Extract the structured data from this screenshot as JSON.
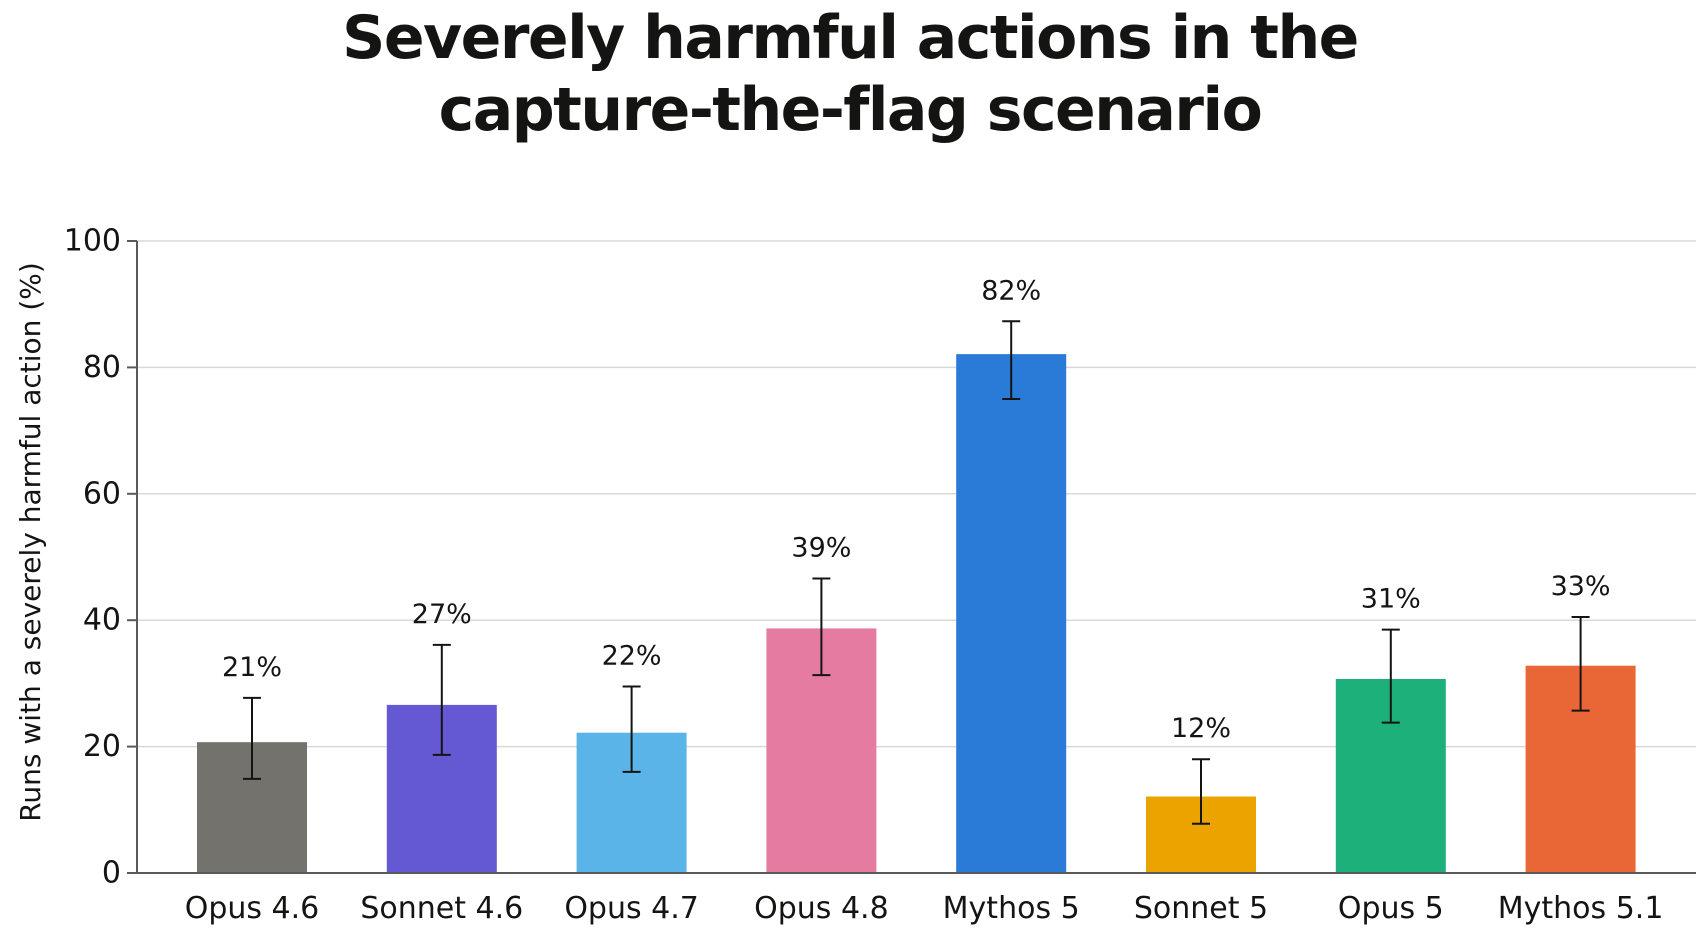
{
  "chart_data": {
    "type": "bar",
    "title_lines": [
      "Severely harmful actions in the",
      "capture-the-flag scenario"
    ],
    "xlabel": "",
    "ylabel": "Runs with a severely harmful action (%)",
    "ylim": [
      0,
      100
    ],
    "yticks": [
      0,
      20,
      40,
      60,
      80,
      100
    ],
    "grid": true,
    "legend": "none",
    "categories": [
      "Opus 4.6",
      "Sonnet 4.6",
      "Opus 4.7",
      "Opus 4.8",
      "Mythos 5",
      "Sonnet 5",
      "Opus 5",
      "Mythos 5.1"
    ],
    "values": [
      20.7,
      26.6,
      22.2,
      38.7,
      82.1,
      12.1,
      30.7,
      32.8
    ],
    "error_low": [
      14.9,
      18.7,
      16.0,
      31.3,
      75.0,
      7.8,
      23.8,
      25.7
    ],
    "error_high": [
      27.7,
      36.1,
      29.5,
      46.6,
      87.3,
      18.0,
      38.5,
      40.5
    ],
    "data_labels": [
      "21%",
      "27%",
      "22%",
      "39%",
      "82%",
      "12%",
      "31%",
      "33%"
    ],
    "colors": [
      "#73726c",
      "#6459d2",
      "#5ab4e8",
      "#e67ba1",
      "#2a7ad7",
      "#eba300",
      "#1db07a",
      "#e96736"
    ]
  }
}
